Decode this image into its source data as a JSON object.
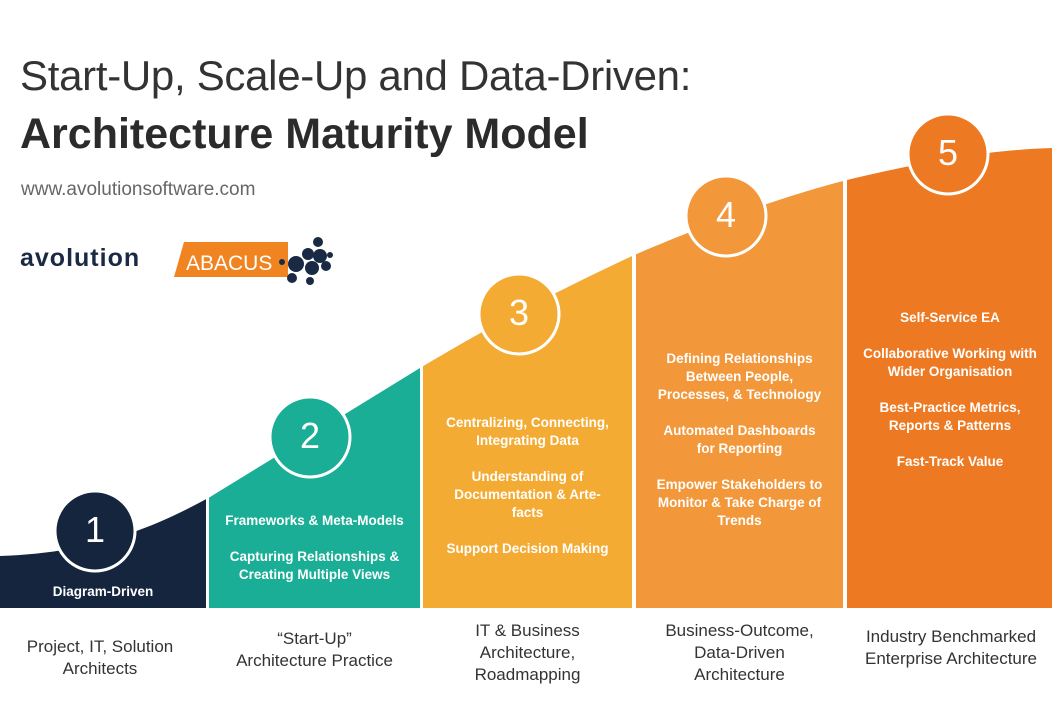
{
  "title_line1": "Start-Up, Scale-Up and Data-Driven:",
  "title_line2": "Architecture Maturity Model",
  "url": "www.avolutionsoftware.com",
  "logo": {
    "brand": "avolution",
    "product": "ABACUS"
  },
  "colors": {
    "stage1": "#14253d",
    "stage2": "#1aae96",
    "stage3": "#f4ab33",
    "stage4": "#f2973a",
    "stage5": "#ed7a22"
  },
  "stages": [
    {
      "number": "1",
      "items": [
        "Diagram-Driven"
      ],
      "caption": [
        "Project, IT, Solution",
        "Architects"
      ]
    },
    {
      "number": "2",
      "items": [
        "Frameworks & Meta-Models",
        "Capturing Relationships & Creating Multiple Views"
      ],
      "caption": [
        "“Start-Up”",
        "Architecture Practice"
      ]
    },
    {
      "number": "3",
      "items": [
        "Centralizing, Connecting, Integrating Data",
        "Understanding of Documentation & Arte-facts",
        "Support Decision Making"
      ],
      "caption": [
        "IT & Business",
        "Architecture,",
        "Roadmapping"
      ]
    },
    {
      "number": "4",
      "items": [
        "Defining Relationships Between People, Processes, & Technology",
        "Automated Dashboards for Reporting",
        "Empower Stakeholders to Monitor & Take Charge of Trends"
      ],
      "caption": [
        "Business-Outcome,",
        "Data-Driven",
        "Architecture"
      ]
    },
    {
      "number": "5",
      "items": [
        "Self-Service EA",
        "Collaborative Working with Wider Organisation",
        "Best-Practice Metrics, Reports & Patterns",
        "Fast-Track Value"
      ],
      "caption": [
        "Industry Benchmarked",
        "Enterprise Architecture"
      ]
    }
  ]
}
